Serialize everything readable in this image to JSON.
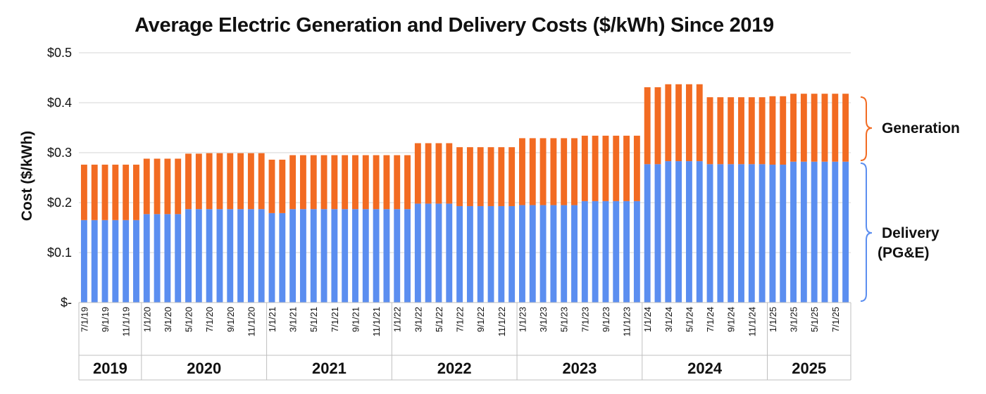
{
  "chart_data": {
    "type": "bar",
    "stacked": true,
    "title": "Average Electric Generation and Delivery Costs ($/kWh) Since 2019",
    "ylabel": "Cost ($/kWh)",
    "ylim": [
      0,
      0.5
    ],
    "yticks": [
      "$-",
      "$0.1",
      "$0.2",
      "$0.3",
      "$0.4",
      "$0.5"
    ],
    "grid": true,
    "categories": [
      "7/1/19",
      "8/1/19",
      "9/1/19",
      "10/1/19",
      "11/1/19",
      "12/1/19",
      "1/1/20",
      "2/1/20",
      "3/1/20",
      "4/1/20",
      "5/1/20",
      "6/1/20",
      "7/1/20",
      "8/1/20",
      "9/1/20",
      "10/1/20",
      "11/1/20",
      "12/1/20",
      "1/1/21",
      "2/1/21",
      "3/1/21",
      "4/1/21",
      "5/1/21",
      "6/1/21",
      "7/1/21",
      "8/1/21",
      "9/1/21",
      "10/1/21",
      "11/1/21",
      "12/1/21",
      "1/1/22",
      "2/1/22",
      "3/1/22",
      "4/1/22",
      "5/1/22",
      "6/1/22",
      "7/1/22",
      "8/1/22",
      "9/1/22",
      "10/1/22",
      "11/1/22",
      "12/1/22",
      "1/1/23",
      "2/1/23",
      "3/1/23",
      "4/1/23",
      "5/1/23",
      "6/1/23",
      "7/1/23",
      "8/1/23",
      "9/1/23",
      "10/1/23",
      "11/1/23",
      "12/1/23",
      "1/1/24",
      "2/1/24",
      "3/1/24",
      "4/1/24",
      "5/1/24",
      "6/1/24",
      "7/1/24",
      "8/1/24",
      "9/1/24",
      "10/1/24",
      "11/1/24",
      "12/1/24",
      "1/1/25",
      "2/1/25",
      "3/1/25",
      "4/1/25",
      "5/1/25",
      "6/1/25",
      "7/1/25",
      "8/1/25"
    ],
    "shown_tick_labels": [
      "7/1/19",
      "9/1/19",
      "11/1/19",
      "1/1/20",
      "3/1/20",
      "5/1/20",
      "7/1/20",
      "9/1/20",
      "11/1/20",
      "1/1/21",
      "3/1/21",
      "5/1/21",
      "7/1/21",
      "9/1/21",
      "11/1/21",
      "1/1/22",
      "3/1/22",
      "5/1/22",
      "7/1/22",
      "9/1/22",
      "11/1/22",
      "1/1/23",
      "3/1/23",
      "5/1/23",
      "7/1/23",
      "9/1/23",
      "11/1/23",
      "1/1/24",
      "3/1/24",
      "5/1/24",
      "7/1/24",
      "9/1/24",
      "11/1/24",
      "1/1/25",
      "3/1/25",
      "5/1/25",
      "7/1/25"
    ],
    "year_groups": [
      {
        "label": "2019",
        "count": 6
      },
      {
        "label": "2020",
        "count": 12
      },
      {
        "label": "2021",
        "count": 12
      },
      {
        "label": "2022",
        "count": 12
      },
      {
        "label": "2023",
        "count": 12
      },
      {
        "label": "2024",
        "count": 12
      },
      {
        "label": "2025",
        "count": 8
      }
    ],
    "series": [
      {
        "name": "Delivery (PG&E)",
        "color": "#5b8ef0",
        "values": [
          0.165,
          0.165,
          0.165,
          0.165,
          0.165,
          0.165,
          0.177,
          0.177,
          0.177,
          0.177,
          0.187,
          0.187,
          0.187,
          0.187,
          0.187,
          0.187,
          0.187,
          0.187,
          0.179,
          0.179,
          0.187,
          0.187,
          0.187,
          0.187,
          0.187,
          0.187,
          0.187,
          0.187,
          0.187,
          0.187,
          0.187,
          0.187,
          0.198,
          0.198,
          0.198,
          0.198,
          0.193,
          0.193,
          0.193,
          0.193,
          0.193,
          0.193,
          0.195,
          0.195,
          0.195,
          0.195,
          0.195,
          0.195,
          0.203,
          0.203,
          0.203,
          0.203,
          0.203,
          0.203,
          0.277,
          0.277,
          0.283,
          0.283,
          0.283,
          0.283,
          0.277,
          0.277,
          0.277,
          0.277,
          0.277,
          0.277,
          0.276,
          0.276,
          0.282,
          0.282,
          0.282,
          0.282,
          0.282,
          0.282
        ]
      },
      {
        "name": "Generation",
        "color": "#f26b22",
        "values": [
          0.111,
          0.111,
          0.111,
          0.111,
          0.111,
          0.111,
          0.111,
          0.111,
          0.111,
          0.111,
          0.111,
          0.111,
          0.112,
          0.112,
          0.112,
          0.112,
          0.112,
          0.112,
          0.107,
          0.107,
          0.108,
          0.108,
          0.108,
          0.108,
          0.108,
          0.108,
          0.108,
          0.108,
          0.108,
          0.108,
          0.108,
          0.108,
          0.121,
          0.121,
          0.121,
          0.121,
          0.118,
          0.118,
          0.118,
          0.118,
          0.118,
          0.118,
          0.134,
          0.134,
          0.134,
          0.134,
          0.134,
          0.134,
          0.131,
          0.131,
          0.131,
          0.131,
          0.131,
          0.131,
          0.154,
          0.154,
          0.154,
          0.154,
          0.154,
          0.154,
          0.134,
          0.134,
          0.134,
          0.134,
          0.134,
          0.134,
          0.137,
          0.137,
          0.136,
          0.136,
          0.136,
          0.136,
          0.136,
          0.136
        ]
      }
    ]
  }
}
